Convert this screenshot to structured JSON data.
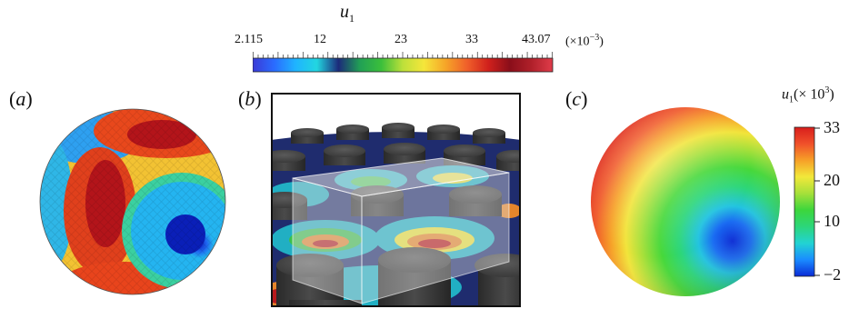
{
  "top_colorbar": {
    "title_var": "u",
    "title_sub": "1",
    "ticks": [
      "2.115",
      "12",
      "23",
      "33",
      "43.07"
    ],
    "scale_note_prefix": "(×10",
    "scale_note_exp": "−3",
    "scale_note_suffix": ")",
    "colors": [
      "#3b3bd6",
      "#2a6bff",
      "#1fb4ff",
      "#22d6e0",
      "#1c2a7a",
      "#21a055",
      "#3bbf3b",
      "#bde03a",
      "#f5e63a",
      "#f6a528",
      "#f0602a",
      "#d0201c",
      "#8a0e1a",
      "#b0202a",
      "#e03c4a"
    ]
  },
  "panels": {
    "a": {
      "label_open": "(",
      "label_letter": "a",
      "label_close": ")"
    },
    "b": {
      "label_open": "(",
      "label_letter": "b",
      "label_close": ")"
    },
    "c": {
      "label_open": "(",
      "label_letter": "c",
      "label_close": ")"
    }
  },
  "right_colorbar": {
    "title_var": "u",
    "title_sub": "1",
    "title_rest_prefix": "(× 10",
    "title_exp": "3",
    "title_rest_suffix": ")",
    "ticks": [
      "33",
      "20",
      "10",
      "−2"
    ],
    "colors": [
      "#0a2bd6",
      "#1a8cff",
      "#22d3d3",
      "#2cd67a",
      "#3cd63c",
      "#a6e03a",
      "#f2e83a",
      "#f6a028",
      "#f0502a",
      "#d81e1c"
    ]
  }
}
